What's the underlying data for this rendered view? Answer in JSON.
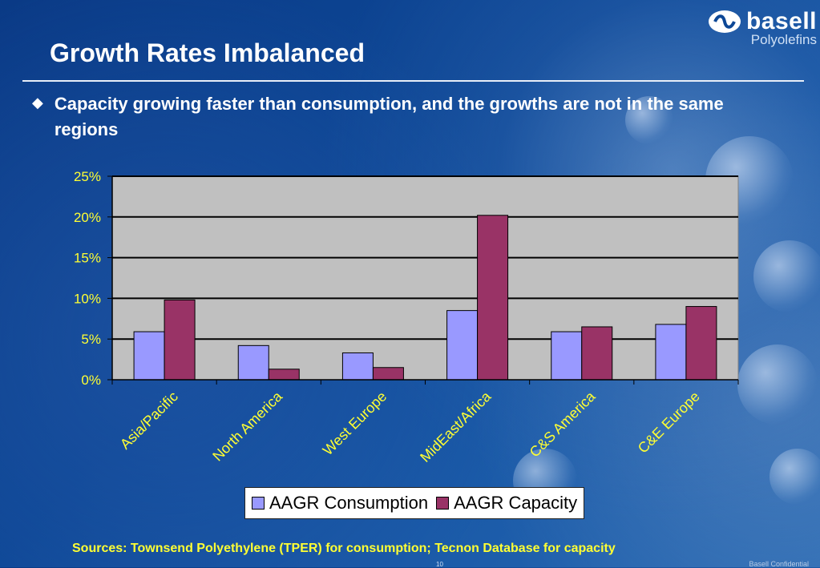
{
  "slide": {
    "title": "Growth Rates Imbalanced",
    "bullet": "Capacity growing faster than consumption, and the growths are not in the same regions",
    "source": "Sources: Townsend Polyethylene (TPER) for consumption; Tecnon Database for capacity",
    "page_number": "10",
    "confidential": "Basell Confidential"
  },
  "logo": {
    "name": "basell",
    "subtitle": "Polyolefins"
  },
  "colors": {
    "consumption": "#9999ff",
    "capacity": "#993366",
    "plot_bg": "#c0c0c0",
    "tick_text": "#ffff33"
  },
  "chart_data": {
    "type": "bar",
    "categories": [
      "Asia/Pacific",
      "North America",
      "West Europe",
      "MidEast/Africa",
      "C&S America",
      "C&E Europe"
    ],
    "series": [
      {
        "name": "AAGR Consumption",
        "values": [
          5.9,
          4.2,
          3.3,
          8.5,
          5.9,
          6.8
        ]
      },
      {
        "name": "AAGR Capacity",
        "values": [
          9.8,
          1.3,
          1.5,
          20.2,
          6.5,
          9.0
        ]
      }
    ],
    "y_ticks": [
      "0%",
      "5%",
      "10%",
      "15%",
      "20%",
      "25%"
    ],
    "ylim": [
      0,
      25
    ],
    "grid": true,
    "legend": "bottom"
  }
}
